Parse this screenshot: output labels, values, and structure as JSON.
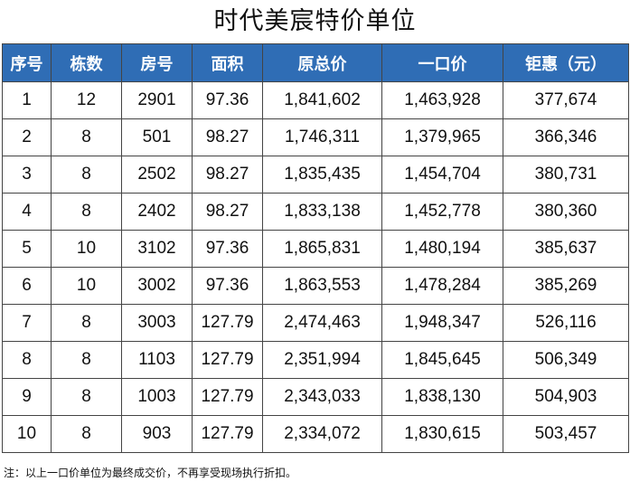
{
  "title": "时代美宸特价单位",
  "headers": [
    "序号",
    "栋数",
    "房号",
    "面积",
    "原总价",
    "一口价",
    "钜惠（元）"
  ],
  "rows": [
    [
      "1",
      "12",
      "2901",
      "97.36",
      "1,841,602",
      "1,463,928",
      "377,674"
    ],
    [
      "2",
      "8",
      "501",
      "98.27",
      "1,746,311",
      "1,379,965",
      "366,346"
    ],
    [
      "3",
      "8",
      "2502",
      "98.27",
      "1,835,435",
      "1,454,704",
      "380,731"
    ],
    [
      "4",
      "8",
      "2402",
      "98.27",
      "1,833,138",
      "1,452,778",
      "380,360"
    ],
    [
      "5",
      "10",
      "3102",
      "97.36",
      "1,865,831",
      "1,480,194",
      "385,637"
    ],
    [
      "6",
      "10",
      "3002",
      "97.36",
      "1,863,553",
      "1,478,284",
      "385,269"
    ],
    [
      "7",
      "8",
      "3003",
      "127.79",
      "2,474,463",
      "1,948,347",
      "526,116"
    ],
    [
      "8",
      "8",
      "1103",
      "127.79",
      "2,351,994",
      "1,845,645",
      "506,349"
    ],
    [
      "9",
      "8",
      "1003",
      "127.79",
      "2,343,033",
      "1,838,130",
      "504,903"
    ],
    [
      "10",
      "8",
      "903",
      "127.79",
      "2,334,072",
      "1,830,615",
      "503,457"
    ]
  ],
  "note": "注：以上一口价单位为最终成交价，不再享受现场执行折扣。",
  "colors": {
    "header_bg": "#2f6db5",
    "header_text": "#ffffff",
    "border": "#444444"
  }
}
